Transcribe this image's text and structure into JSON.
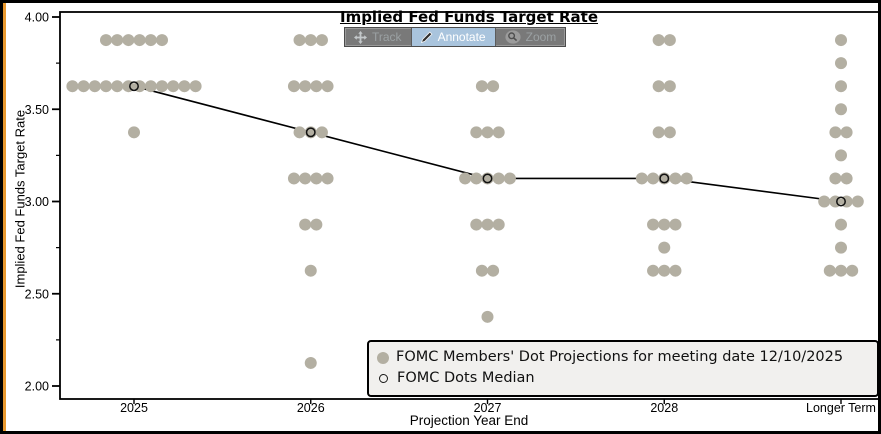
{
  "window": {
    "accent_strip_color": "#e9992f",
    "background": "#ffffff",
    "border_color": "#000000"
  },
  "title": "Implied Fed Funds Target Rate",
  "toolbar": {
    "track_label": "Track",
    "annotate_label": "Annotate",
    "zoom_label": "Zoom",
    "active_tool": "Annotate",
    "active_bg": "#a9c4dd"
  },
  "legend": {
    "dots_label": "FOMC Members' Dot Projections for meeting date 12/10/2025",
    "median_label": "FOMC Dots Median",
    "dot_color": "#b3afa2"
  },
  "chart_data": {
    "type": "scatter",
    "title": "Implied Fed Funds Target Rate",
    "xlabel": "Projection Year End",
    "ylabel": "Implied Fed Funds Target Rate",
    "ylim": [
      2.0,
      4.0
    ],
    "yticks": [
      4.0,
      3.5,
      3.0,
      2.5,
      2.0
    ],
    "ytick_labels": [
      "4.00",
      "3.50",
      "3.00",
      "2.50",
      "2.00"
    ],
    "yticks_minor": [
      3.75,
      3.25,
      2.75,
      2.25
    ],
    "categories": [
      "2025",
      "2026",
      "2027",
      "2028",
      "Longer Term"
    ],
    "grid": false,
    "legend_position": "bottom-right",
    "dot_color": "#b3afa2",
    "series": [
      {
        "name": "FOMC Members' Dot Projections for meeting date 12/10/2025",
        "marker": "filled-dot",
        "color": "#b3afa2",
        "dots": [
          {
            "category": "2025",
            "levels": [
              {
                "rate": 3.875,
                "count": 6
              },
              {
                "rate": 3.625,
                "count": 12
              },
              {
                "rate": 3.375,
                "count": 1
              }
            ]
          },
          {
            "category": "2026",
            "levels": [
              {
                "rate": 3.875,
                "count": 3
              },
              {
                "rate": 3.625,
                "count": 4
              },
              {
                "rate": 3.375,
                "count": 3
              },
              {
                "rate": 3.125,
                "count": 4
              },
              {
                "rate": 2.875,
                "count": 2
              },
              {
                "rate": 2.625,
                "count": 1
              },
              {
                "rate": 2.125,
                "count": 1
              }
            ]
          },
          {
            "category": "2027",
            "levels": [
              {
                "rate": 3.625,
                "count": 2
              },
              {
                "rate": 3.375,
                "count": 3
              },
              {
                "rate": 3.125,
                "count": 5
              },
              {
                "rate": 2.875,
                "count": 3
              },
              {
                "rate": 2.625,
                "count": 2
              },
              {
                "rate": 2.375,
                "count": 1
              }
            ]
          },
          {
            "category": "2028",
            "levels": [
              {
                "rate": 3.875,
                "count": 2
              },
              {
                "rate": 3.625,
                "count": 2
              },
              {
                "rate": 3.375,
                "count": 2
              },
              {
                "rate": 3.125,
                "count": 5
              },
              {
                "rate": 2.875,
                "count": 3
              },
              {
                "rate": 2.75,
                "count": 1
              },
              {
                "rate": 2.625,
                "count": 3
              }
            ]
          },
          {
            "category": "Longer Term",
            "levels": [
              {
                "rate": 3.875,
                "count": 1
              },
              {
                "rate": 3.75,
                "count": 1
              },
              {
                "rate": 3.625,
                "count": 1
              },
              {
                "rate": 3.5,
                "count": 1
              },
              {
                "rate": 3.375,
                "count": 2
              },
              {
                "rate": 3.25,
                "count": 1
              },
              {
                "rate": 3.125,
                "count": 2
              },
              {
                "rate": 3.0,
                "count": 4
              },
              {
                "rate": 2.875,
                "count": 1
              },
              {
                "rate": 2.75,
                "count": 1
              },
              {
                "rate": 2.625,
                "count": 3
              }
            ]
          }
        ]
      },
      {
        "name": "FOMC Dots Median",
        "marker": "open-circle",
        "line": true,
        "color": "#000000",
        "values": [
          3.625,
          3.375,
          3.125,
          3.125,
          3.0
        ]
      }
    ]
  }
}
